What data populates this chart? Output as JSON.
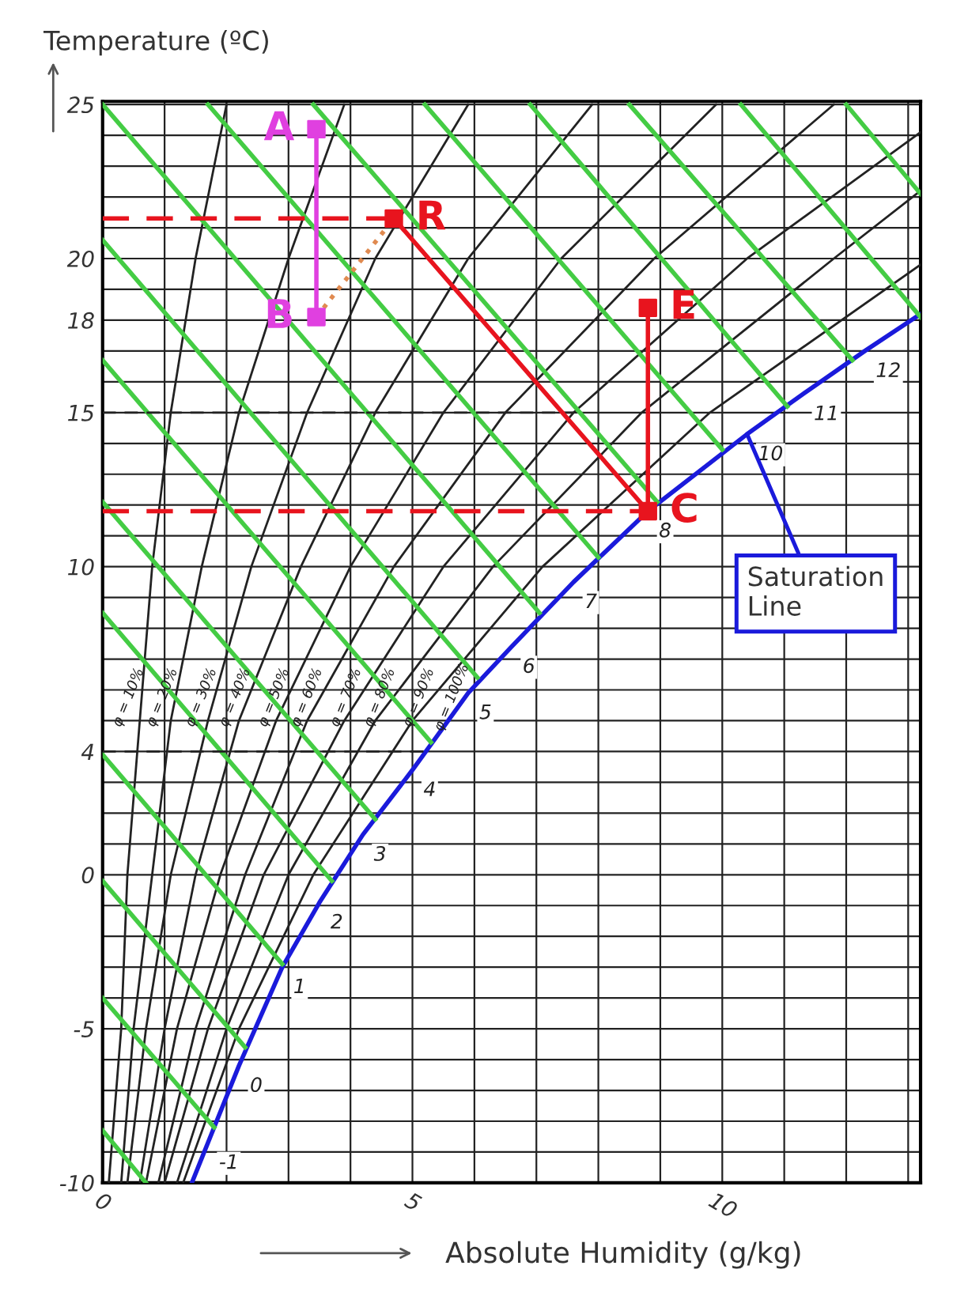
{
  "chart_data": {
    "type": "line",
    "xlabel": "Absolute Humidity (g/kg)",
    "ylabel": "Temperature (ºC)",
    "xlim": [
      0,
      13.2
    ],
    "ylim": [
      -10,
      25.1
    ],
    "xticks": [
      0,
      {
        "value": 1,
        "label": null
      },
      {
        "value": 2,
        "label": null
      },
      {
        "value": 3,
        "label": null
      },
      {
        "value": 4,
        "label": null
      },
      5,
      {
        "value": 6,
        "label": null
      },
      {
        "value": 7,
        "label": null
      },
      {
        "value": 8,
        "label": null
      },
      {
        "value": 9,
        "label": null
      },
      10,
      {
        "value": 11,
        "label": null
      },
      {
        "value": 12,
        "label": null
      },
      {
        "value": 13,
        "label": null
      }
    ],
    "yticks": [
      -10,
      {
        "value": -9,
        "label": null
      },
      {
        "value": -8,
        "label": null
      },
      {
        "value": -7,
        "label": null
      },
      {
        "value": -6,
        "label": null
      },
      -5,
      {
        "value": -4,
        "label": null
      },
      {
        "value": -3,
        "label": null
      },
      {
        "value": -2,
        "label": null
      },
      {
        "value": -1,
        "label": null
      },
      0,
      {
        "value": 1,
        "label": null
      },
      {
        "value": 2,
        "label": null
      },
      {
        "value": 3,
        "label": null
      },
      4,
      {
        "value": 5,
        "label": null
      },
      {
        "value": 6,
        "label": null
      },
      {
        "value": 7,
        "label": null
      },
      {
        "value": 8,
        "label": null
      },
      {
        "value": 9,
        "label": null
      },
      10,
      {
        "value": 11,
        "label": null
      },
      {
        "value": 12,
        "label": null
      },
      {
        "value": 13,
        "label": null
      },
      {
        "value": 14,
        "label": null
      },
      15,
      {
        "value": 16,
        "label": null
      },
      {
        "value": 17,
        "label": null
      },
      18,
      {
        "value": 19,
        "label": null
      },
      20,
      {
        "value": 21,
        "label": null
      },
      {
        "value": 22,
        "label": null
      },
      {
        "value": 23,
        "label": null
      },
      {
        "value": 24,
        "label": null
      },
      25
    ],
    "grid": true,
    "legend": false,
    "series": [
      {
        "color": "#1a1adb",
        "x": [
          1.44,
          1.7,
          2.2,
          2.9,
          3.5,
          4.2,
          5.0,
          5.9,
          6.6,
          7.6,
          8.8,
          10.4,
          11.3,
          12.3,
          13.2
        ],
        "values": [
          -10,
          -8.7,
          -6.2,
          -3,
          -0.9,
          1.3,
          3.4,
          5.9,
          7.4,
          9.5,
          11.8,
          14.3,
          15.6,
          17.0,
          18.2
        ]
      },
      {
        "color": "#222222",
        "x": [
          0.1,
          0.3,
          0.4,
          0.6,
          0.8,
          1.1,
          1.5,
          2.0
        ],
        "values": [
          -10,
          -5,
          0,
          5,
          10,
          15,
          20,
          25
        ]
      },
      {
        "color": "#222222",
        "x": [
          0.3,
          0.5,
          0.8,
          1.1,
          1.6,
          2.2,
          3.0,
          3.9
        ],
        "values": [
          -10,
          -5,
          0,
          5,
          10,
          15,
          20,
          25
        ]
      },
      {
        "color": "#222222",
        "x": [
          0.4,
          0.7,
          1.1,
          1.7,
          2.4,
          3.3,
          4.4,
          5.9
        ],
        "values": [
          -10,
          -5,
          0,
          5,
          10,
          15,
          20,
          25
        ]
      },
      {
        "color": "#222222",
        "x": [
          0.6,
          1.0,
          1.5,
          2.2,
          3.2,
          4.4,
          5.9,
          7.9
        ],
        "values": [
          -10,
          -5,
          0,
          5,
          10,
          15,
          20,
          25
        ]
      },
      {
        "color": "#222222",
        "x": [
          0.7,
          1.2,
          1.9,
          2.8,
          4.0,
          5.5,
          7.4,
          9.9
        ],
        "values": [
          -10,
          -5,
          0,
          5,
          10,
          15,
          20,
          25
        ]
      },
      {
        "color": "#222222",
        "x": [
          0.9,
          1.5,
          2.3,
          3.3,
          4.7,
          6.5,
          8.9,
          11.8
        ],
        "values": [
          -10,
          -5,
          0,
          5,
          10,
          15,
          20,
          25
        ]
      },
      {
        "color": "#222222",
        "x": [
          1.0,
          1.7,
          2.6,
          3.9,
          5.5,
          7.6,
          10.4,
          13.2
        ],
        "values": [
          -10,
          -5,
          0,
          5,
          10,
          15,
          20,
          24.1
        ]
      },
      {
        "color": "#222222",
        "x": [
          1.2,
          2.0,
          3.0,
          4.4,
          6.3,
          8.7,
          11.8,
          13.2
        ],
        "values": [
          -10,
          -5,
          0,
          5,
          10,
          15,
          20,
          22.2
        ]
      },
      {
        "color": "#222222",
        "x": [
          1.3,
          2.2,
          3.4,
          5.0,
          7.1,
          9.8,
          13.2
        ],
        "values": [
          -10,
          -5,
          0,
          5,
          10,
          15,
          19.8
        ]
      },
      {
        "color": "#44cc44",
        "x": [
          0,
          0.7
        ],
        "values": [
          -8.3,
          -10
        ]
      },
      {
        "color": "#44cc44",
        "x": [
          0,
          1.8
        ],
        "values": [
          -4.0,
          -8.2
        ]
      },
      {
        "color": "#44cc44",
        "x": [
          0,
          2.3
        ],
        "values": [
          -0.2,
          -5.6
        ]
      },
      {
        "color": "#44cc44",
        "x": [
          0,
          2.9
        ],
        "values": [
          3.9,
          -2.9
        ]
      },
      {
        "color": "#44cc44",
        "x": [
          0,
          3.7
        ],
        "values": [
          8.5,
          -0.2
        ]
      },
      {
        "color": "#44cc44",
        "x": [
          0,
          4.4
        ],
        "values": [
          12.1,
          1.8
        ]
      },
      {
        "color": "#44cc44",
        "x": [
          0,
          5.3
        ],
        "values": [
          16.7,
          4.3
        ]
      },
      {
        "color": "#44cc44",
        "x": [
          0,
          6.05
        ],
        "values": [
          20.6,
          6.4
        ]
      },
      {
        "color": "#44cc44",
        "x": [
          0,
          7.05
        ],
        "values": [
          25,
          8.5
        ]
      },
      {
        "color": "#44cc44",
        "x": [
          1.7,
          8.0
        ],
        "values": [
          25,
          10.3
        ]
      },
      {
        "color": "#44cc44",
        "x": [
          3.4,
          8.95
        ],
        "values": [
          25,
          12.1
        ]
      },
      {
        "color": "#44cc44",
        "x": [
          5.2,
          10.0
        ],
        "values": [
          25,
          13.8
        ]
      },
      {
        "color": "#44cc44",
        "x": [
          6.9,
          11.05
        ],
        "values": [
          25,
          15.2
        ]
      },
      {
        "color": "#44cc44",
        "x": [
          8.5,
          12.1
        ],
        "values": [
          25,
          16.7
        ]
      },
      {
        "color": "#44cc44",
        "x": [
          10.3,
          13.2
        ],
        "values": [
          25,
          18.1
        ]
      },
      {
        "color": "#44cc44",
        "x": [
          12.0,
          13.2
        ],
        "values": [
          25,
          22.1
        ]
      },
      {
        "color": "#222222",
        "line_style": "dashed",
        "x": [
          0,
          7.6
        ],
        "values": [
          15,
          15
        ]
      },
      {
        "color": "#222222",
        "line_style": "dashed",
        "x": [
          0,
          5.3
        ],
        "values": [
          4,
          4
        ]
      },
      {
        "color": "#e8141e",
        "line_style": "dashed",
        "x": [
          0,
          4.7
        ],
        "values": [
          21.3,
          21.3
        ]
      },
      {
        "color": "#e8141e",
        "line_style": "dashed",
        "x": [
          0,
          8.8
        ],
        "values": [
          11.8,
          11.8
        ]
      },
      {
        "color": "#e8141e",
        "x": [
          4.7,
          8.8
        ],
        "values": [
          21.3,
          11.8
        ]
      },
      {
        "color": "#e8141e",
        "x": [
          8.8,
          8.8
        ],
        "values": [
          11.8,
          18.4
        ]
      },
      {
        "color": "#e040e0",
        "x": [
          3.45,
          3.45
        ],
        "values": [
          24.2,
          18.1
        ]
      },
      {
        "color": "#e08a50",
        "line_style": "dotted",
        "x": [
          3.45,
          4.7
        ],
        "values": [
          18.1,
          21.3
        ]
      },
      {
        "type": "scatter",
        "marker": "square",
        "name": "A",
        "color": "#e040e0",
        "x": [
          3.45
        ],
        "values": [
          24.2
        ]
      },
      {
        "type": "scatter",
        "marker": "square",
        "name": "B",
        "color": "#e040e0",
        "x": [
          3.45
        ],
        "values": [
          18.1
        ]
      },
      {
        "type": "scatter",
        "marker": "square",
        "name": "R",
        "color": "#e8141e",
        "x": [
          4.7
        ],
        "values": [
          21.3
        ]
      },
      {
        "type": "scatter",
        "marker": "square",
        "name": "C",
        "color": "#e8141e",
        "x": [
          8.8
        ],
        "values": [
          11.8
        ]
      },
      {
        "type": "scatter",
        "marker": "square",
        "name": "E",
        "color": "#e8141e",
        "x": [
          8.8
        ],
        "values": [
          18.4
        ]
      }
    ],
    "annotations": [
      {
        "text": "Saturation\nLine",
        "x": 10.4,
        "y": 14.3
      },
      {
        "text": "-1",
        "x": 1.7,
        "y": -8.7
      },
      {
        "text": "0",
        "x": 2.2,
        "y": -6.2
      },
      {
        "text": "1",
        "x": 2.9,
        "y": -3
      },
      {
        "text": "2",
        "x": 3.5,
        "y": -0.9
      },
      {
        "text": "3",
        "x": 4.2,
        "y": 1.3
      },
      {
        "text": "4",
        "x": 5.0,
        "y": 3.4
      },
      {
        "text": "5",
        "x": 5.9,
        "y": 5.9
      },
      {
        "text": "6",
        "x": 6.6,
        "y": 7.4
      },
      {
        "text": "7",
        "x": 7.6,
        "y": 9.5
      },
      {
        "text": "8",
        "x": 8.8,
        "y": 11.8
      },
      {
        "text": "10",
        "x": 10.4,
        "y": 14.3
      },
      {
        "text": "11",
        "x": 11.3,
        "y": 15.6
      },
      {
        "text": "12",
        "x": 12.3,
        "y": 17.0
      },
      "φ = 10%",
      "φ = 20%",
      "φ = 30%",
      "φ = 40%",
      "φ = 50%",
      "φ = 60%",
      "φ = 70%",
      "φ = 80%",
      "φ = 90%",
      "φ = 100%"
    ]
  }
}
